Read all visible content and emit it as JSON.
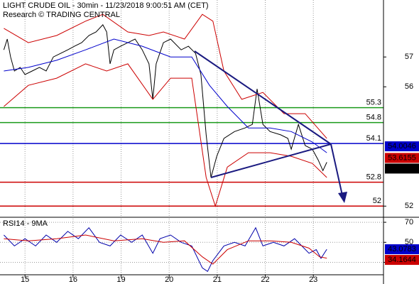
{
  "chart_data": [
    {
      "type": "line",
      "title": "LIGHT CRUDE OIL - 30min - 11/23/2018 9:00:51 AM (CET)",
      "subtitle": "Research © TRADING CENTRAL",
      "xlim": [
        -0.52,
        7.46
      ],
      "ylim": [
        51.65,
        58.91
      ],
      "yticks": [
        52,
        56,
        57
      ],
      "series": [
        {
          "color": "#000000",
          "x": [
            -0.44,
            -0.37,
            -0.3,
            -0.22,
            -0.1,
            0,
            0.15,
            0.3,
            0.44,
            0.59,
            0.74,
            0.89,
            1.03,
            1.18,
            1.33,
            1.48,
            1.62,
            1.7,
            1.77,
            1.85,
            1.99,
            2.14,
            2.29,
            2.44,
            2.58,
            2.66,
            2.73,
            2.88,
            3.03,
            3.25,
            3.4,
            3.55,
            3.66,
            3.77,
            3.87,
            3.99,
            4.14,
            4.36,
            4.58,
            4.73,
            4.83,
            4.95,
            5.1,
            5.32,
            5.47,
            5.54,
            5.69,
            5.83,
            5.98,
            6.1,
            6.2,
            6.28
          ],
          "values": [
            57.24,
            57.6,
            57.0,
            56.53,
            56.65,
            56.41,
            56.53,
            56.65,
            56.53,
            57.0,
            57.12,
            57.24,
            57.36,
            57.48,
            57.72,
            57.84,
            58.08,
            57.84,
            56.77,
            57.24,
            57.36,
            57.48,
            57.6,
            57.24,
            56.77,
            55.58,
            56.77,
            57.48,
            57.6,
            57.24,
            57.36,
            57.12,
            56.41,
            54.39,
            52.96,
            53.67,
            54.27,
            54.5,
            54.62,
            54.74,
            55.93,
            54.74,
            54.5,
            54.39,
            54.27,
            53.91,
            54.74,
            54.03,
            53.91,
            53.55,
            53.19,
            53.47
          ]
        },
        {
          "color": "#cc0000",
          "x": [
            -0.44,
            0.07,
            0.66,
            1.26,
            1.62,
            2.14,
            2.58,
            2.88,
            3.32,
            3.69,
            3.91,
            4.14,
            4.51,
            4.95,
            5.39,
            5.83,
            6.28
          ],
          "values": [
            57.96,
            57.48,
            57.72,
            58.2,
            58.43,
            57.84,
            57.72,
            57.84,
            57.6,
            58.43,
            58.2,
            56.53,
            55.58,
            55.81,
            55.1,
            55.1,
            54.27
          ]
        },
        {
          "color": "#cc0000",
          "x": [
            -0.44,
            0.07,
            0.66,
            1.26,
            1.7,
            2.14,
            2.66,
            3.03,
            3.47,
            3.77,
            3.96,
            4.21,
            4.65,
            5.1,
            5.54,
            5.98,
            6.28
          ],
          "values": [
            55.34,
            56.05,
            56.29,
            56.77,
            56.53,
            56.77,
            55.58,
            56.29,
            56.29,
            52.96,
            52.0,
            53.31,
            53.79,
            53.79,
            53.67,
            53.43,
            52.96
          ]
        },
        {
          "color": "#0000cc",
          "x": [
            -0.44,
            0.07,
            0.66,
            1.26,
            1.85,
            2.44,
            3.03,
            3.47,
            3.84,
            4.21,
            4.65,
            5.1,
            5.54,
            5.98,
            6.28
          ],
          "values": [
            56.53,
            56.65,
            56.89,
            57.24,
            57.6,
            57.36,
            57.0,
            57.0,
            56.05,
            55.34,
            54.62,
            54.62,
            54.5,
            54.15,
            53.79
          ]
        }
      ],
      "levels": [
        {
          "value": 55.3,
          "color": "#1a9a1a"
        },
        {
          "value": 54.8,
          "color": "#1a9a1a"
        },
        {
          "value": 54.1,
          "color": "#0000cc"
        },
        {
          "value": 52.8,
          "color": "#cc0000"
        },
        {
          "value": 52,
          "color": "#cc0000"
        }
      ],
      "tags": [
        {
          "value": 54.0046,
          "color": "#0000cc"
        },
        {
          "value": 53.6155,
          "color": "#cc0000"
        },
        {
          "value": 53.47,
          "color": "#000000"
        }
      ]
    },
    {
      "type": "line",
      "title": "RSI14 - 9MA",
      "xlim": [
        -0.52,
        7.46
      ],
      "xticks": [
        {
          "value": 0,
          "label": "15"
        },
        {
          "value": 1,
          "label": "16"
        },
        {
          "value": 2,
          "label": "19"
        },
        {
          "value": 3,
          "label": "20"
        },
        {
          "value": 4,
          "label": "21"
        },
        {
          "value": 5,
          "label": "22"
        },
        {
          "value": 6,
          "label": "23"
        }
      ],
      "ylim": [
        17.6,
        73.6
      ],
      "yticks": [
        30,
        50,
        70
      ],
      "series": [
        {
          "color": "#0000aa",
          "x": [
            -0.44,
            -0.22,
            0,
            0.22,
            0.44,
            0.66,
            0.89,
            1.11,
            1.33,
            1.55,
            1.77,
            1.99,
            2.22,
            2.44,
            2.66,
            2.81,
            3.03,
            3.25,
            3.47,
            3.69,
            3.8,
            3.91,
            4.14,
            4.36,
            4.58,
            4.8,
            4.95,
            5.17,
            5.39,
            5.61,
            5.76,
            5.91,
            6.06,
            6.16,
            6.28
          ],
          "values": [
            57.3,
            46.4,
            53.6,
            46.4,
            57.3,
            50,
            60.9,
            53.6,
            64.5,
            50,
            46.4,
            57.3,
            50,
            57.3,
            39.1,
            53.6,
            57.3,
            50,
            46.4,
            24.5,
            20.9,
            31.8,
            46.4,
            50,
            46.4,
            64.5,
            46.4,
            50,
            46.4,
            53.6,
            46.4,
            39.1,
            42.7,
            34,
            43.0783
          ]
        },
        {
          "color": "#cc0000",
          "x": [
            -0.44,
            0.07,
            0.66,
            1.26,
            1.85,
            2.44,
            2.88,
            3.32,
            3.69,
            3.91,
            4.21,
            4.65,
            5.1,
            5.54,
            5.91,
            6.13,
            6.28
          ],
          "values": [
            53.6,
            51.5,
            53.6,
            57.3,
            51.5,
            53.6,
            50,
            51.5,
            35.5,
            28.2,
            42.7,
            51.5,
            51.5,
            50,
            44.2,
            35.5,
            34.1644
          ]
        }
      ],
      "tags": [
        {
          "value": 43.0783,
          "color": "#0000cc"
        },
        {
          "value": 34.1644,
          "color": "#cc0000"
        }
      ]
    }
  ]
}
